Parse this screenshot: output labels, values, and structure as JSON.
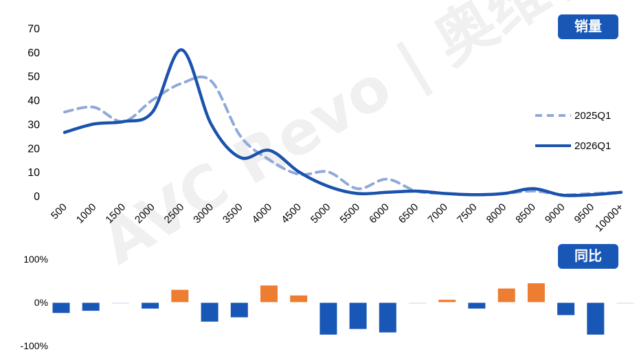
{
  "badges": {
    "top": "销量",
    "bottom": "同比"
  },
  "watermark": "AVC Revo | 奥维睿沃",
  "chart_data": [
    {
      "type": "line",
      "categories": [
        "500",
        "1000",
        "1500",
        "2000",
        "2500",
        "3000",
        "3500",
        "4000",
        "4500",
        "5000",
        "5500",
        "6000",
        "6500",
        "7000",
        "7500",
        "8000",
        "8500",
        "9000",
        "9500",
        "10000+"
      ],
      "yticks": [
        "0",
        "10",
        "20",
        "30",
        "40",
        "50",
        "60",
        "70"
      ],
      "ylim": [
        0,
        70
      ],
      "legend_position": "right",
      "series": [
        {
          "name": "2025Q1",
          "style": "dashed",
          "color": "#8fa9d9",
          "values": [
            35,
            37,
            31,
            40,
            47,
            48,
            25,
            15,
            9,
            10,
            3,
            7,
            2,
            1,
            0.5,
            1,
            2,
            0.5,
            1,
            1.5
          ]
        },
        {
          "name": "2026Q1",
          "style": "solid",
          "color": "#1a52ad",
          "values": [
            26.5,
            30,
            31,
            35,
            61,
            30,
            16,
            19,
            10,
            4,
            1,
            1.5,
            2,
            1,
            0.5,
            1,
            3,
            0.3,
            0.5,
            1.5
          ]
        }
      ]
    },
    {
      "type": "bar",
      "categories": [
        "500",
        "1000",
        "1500",
        "2000",
        "2500",
        "3000",
        "3500",
        "4000",
        "4500",
        "5000",
        "5500",
        "6000",
        "6500",
        "7000",
        "7500",
        "8000",
        "8500",
        "9000",
        "9500",
        "10000+"
      ],
      "yticks": [
        "100%",
        "0%",
        "-100%"
      ],
      "ylim": [
        -100,
        100
      ],
      "values": [
        -25,
        -20,
        -3,
        -15,
        30,
        -45,
        -35,
        40,
        17,
        -75,
        -62,
        -70,
        -3,
        7,
        -15,
        33,
        45,
        -30,
        -75,
        -3
      ],
      "colors": {
        "positive": "#ed7d31",
        "negative": "#1857b5",
        "neutral": "#c9d4e8"
      }
    }
  ]
}
